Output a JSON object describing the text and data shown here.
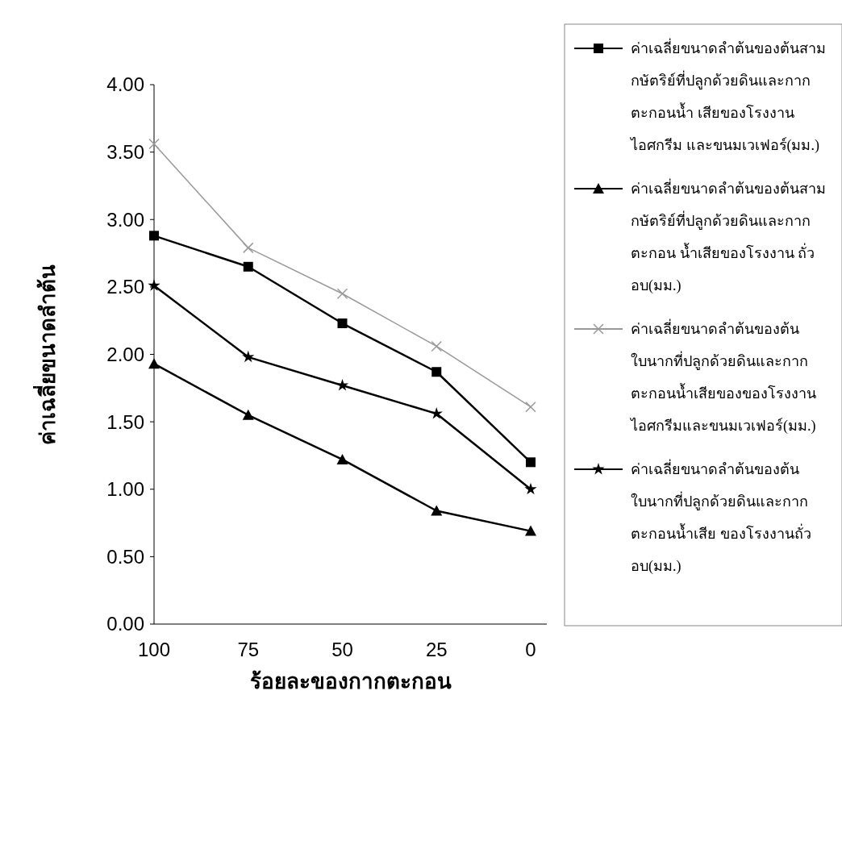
{
  "chart_data": {
    "type": "line",
    "xlabel": "ร้อยละของกากตะกอน",
    "ylabel": "ค่าเฉลี่ยขนาดลำต้น",
    "categories": [
      "100",
      "75",
      "50",
      "25",
      "0"
    ],
    "ylim": [
      0,
      4
    ],
    "yticks": [
      {
        "value": 0,
        "label": "0.00"
      },
      {
        "value": 0.5,
        "label": "0.50"
      },
      {
        "value": 1,
        "label": "1.00"
      },
      {
        "value": 1.5,
        "label": "1.50"
      },
      {
        "value": 2,
        "label": "2.00"
      },
      {
        "value": 2.5,
        "label": "2.50"
      },
      {
        "value": 3,
        "label": "3.00"
      },
      {
        "value": 3.5,
        "label": "3.50"
      },
      {
        "value": 4,
        "label": "4.00"
      }
    ],
    "legend": "right",
    "grid": false,
    "series": [
      {
        "name": "ค่าเฉลี่ยขนาดลำต้นของต้นสามกษัตริย์ที่ปลูกด้วยดินและกากตะกอนน้ำ เสียของโรงงานไอศกรีม และขนมเวเฟอร์(มม.)",
        "color": "#000000",
        "marker": "square",
        "values": [
          2.88,
          2.65,
          2.23,
          1.87,
          1.2
        ]
      },
      {
        "name": "ค่าเฉลี่ยขนาดลำต้นของต้นสามกษัตริย์ที่ปลูกด้วยดินและกากตะกอน น้ำเสียของโรงงาน ถั่วอบ(มม.)",
        "color": "#000000",
        "marker": "triangle",
        "values": [
          1.93,
          1.55,
          1.22,
          0.84,
          0.69
        ]
      },
      {
        "name": "ค่าเฉลี่ยขนาดลำต้นของต้นใบนากที่ปลูกด้วยดินและกากตะกอนน้ำเสียของของโรงงานไอศกรีมและขนมเวเฟอร์(มม.)",
        "color": "#999999",
        "marker": "cross",
        "values": [
          3.56,
          2.79,
          2.45,
          2.06,
          1.61
        ]
      },
      {
        "name": "ค่าเฉลี่ยขนาดลำต้นของต้นใบนากที่ปลูกด้วยดินและกากตะกอนน้ำเสีย ของโรงงานถั่วอบ(มม.)",
        "color": "#000000",
        "marker": "star",
        "values": [
          2.51,
          1.98,
          1.77,
          1.56,
          1.0
        ]
      }
    ]
  }
}
